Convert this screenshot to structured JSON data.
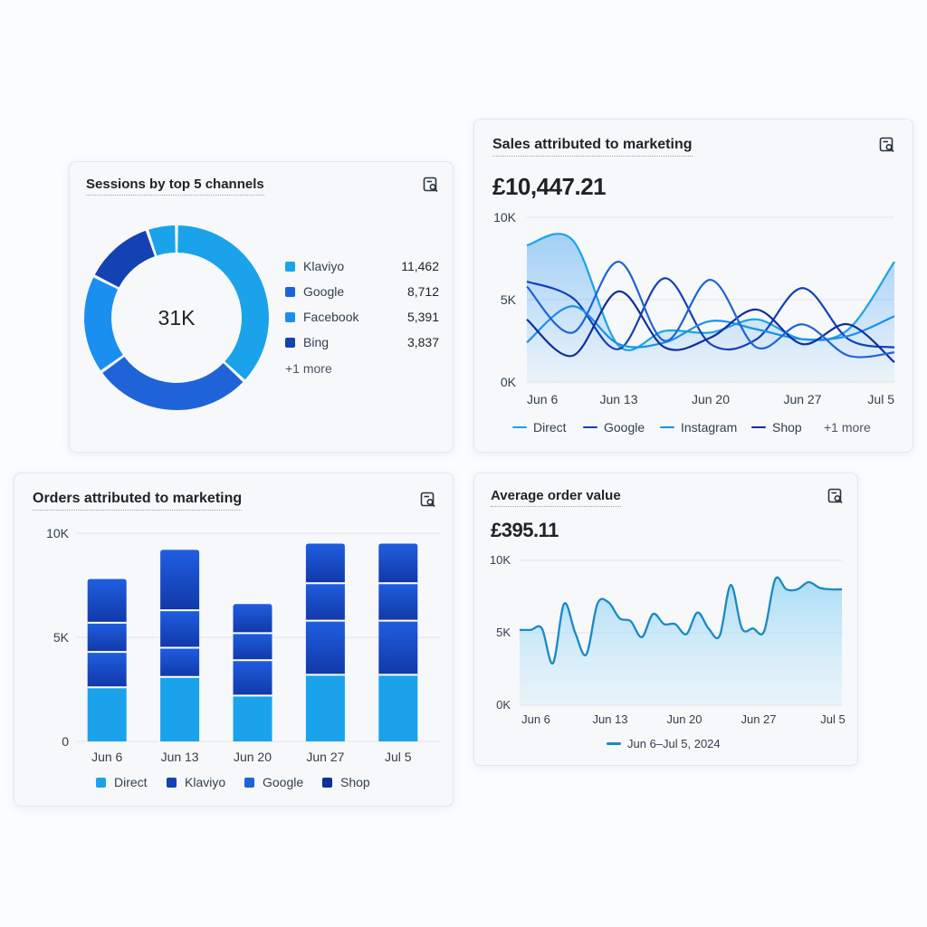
{
  "colors": {
    "light_blue": "#1aa3ea",
    "mid_blue": "#1f63d8",
    "dark_blue": "#1342b3",
    "navy": "#0f2f9a",
    "grid": "#e1e5ea"
  },
  "sessions_card": {
    "title": "Sessions by top 5 channels",
    "icon": "report-search-icon",
    "center_value": "31K",
    "more_label": "+1 more",
    "chart_data": {
      "type": "pie",
      "title": "Sessions by top 5 channels",
      "center_label": "31K",
      "categories": [
        "Klaviyo",
        "Google",
        "Facebook",
        "Bing",
        "+1 more"
      ],
      "values": [
        11462,
        8712,
        5391,
        3837,
        1600
      ],
      "colors": [
        "#1aa3ea",
        "#1f63d8",
        "#1a8ff0",
        "#1342b3",
        "#1aa3ea"
      ]
    },
    "legend": [
      {
        "label": "Klaviyo",
        "value": "11,462",
        "color": "#1aa3ea"
      },
      {
        "label": "Google",
        "value": "8,712",
        "color": "#1f63d8"
      },
      {
        "label": "Facebook",
        "value": "5,391",
        "color": "#1a8ff0"
      },
      {
        "label": "Bing",
        "value": "3,837",
        "color": "#1342b3"
      }
    ]
  },
  "sales_card": {
    "title": "Sales attributed to marketing",
    "icon": "report-search-icon",
    "total": "£10,447.21",
    "more_label": "+1 more",
    "chart_data": {
      "type": "line",
      "title": "Sales attributed to marketing",
      "ylabel": "",
      "xlabel": "",
      "ylim": [
        0,
        10000
      ],
      "y_ticks": [
        "0K",
        "5K",
        "10K"
      ],
      "y_tick_values": [
        0,
        5000,
        10000
      ],
      "x_tick_labels": [
        "Jun 6",
        "Jun 13",
        "Jun 20",
        "Jun 27",
        "Jul 5"
      ],
      "x": [
        "Jun 6",
        "Jun 10",
        "Jun 13",
        "Jun 17",
        "Jun 20",
        "Jun 24",
        "Jun 27",
        "Jul 1",
        "Jul 5"
      ],
      "series": [
        {
          "name": "Direct",
          "color": "#1aa3ea",
          "fill": true,
          "values": [
            8300,
            8600,
            2200,
            3100,
            3000,
            3800,
            2600,
            3200,
            7300
          ]
        },
        {
          "name": "Google",
          "color": "#1342b3",
          "values": [
            6100,
            5100,
            2000,
            6300,
            2300,
            2600,
            5700,
            2600,
            2100
          ]
        },
        {
          "name": "Instagram",
          "color": "#1a8ff0",
          "values": [
            2400,
            4600,
            2300,
            2400,
            3700,
            3200,
            2600,
            2800,
            4000
          ]
        },
        {
          "name": "Shop",
          "color": "#0f2f9a",
          "values": [
            3800,
            1600,
            5500,
            2100,
            2700,
            4400,
            2300,
            3500,
            1200
          ]
        },
        {
          "name": "+1 more",
          "color": "#1f63d8",
          "values": [
            5800,
            3000,
            7300,
            2500,
            6200,
            2100,
            3500,
            1600,
            1800
          ]
        }
      ]
    },
    "legend": [
      {
        "label": "Direct",
        "color": "#1aa3ea"
      },
      {
        "label": "Google",
        "color": "#1342b3"
      },
      {
        "label": "Instagram",
        "color": "#1a8ff0"
      },
      {
        "label": "Shop",
        "color": "#0f2f9a"
      }
    ]
  },
  "orders_card": {
    "title": "Orders attributed to marketing",
    "icon": "report-search-icon",
    "chart_data": {
      "type": "bar",
      "stacked": true,
      "title": "Orders attributed to marketing",
      "xlabel": "",
      "ylabel": "",
      "ylim": [
        0,
        10000
      ],
      "y_ticks": [
        "0",
        "5K",
        "10K"
      ],
      "y_tick_values": [
        0,
        5000,
        10000
      ],
      "categories": [
        "Jun 6",
        "Jun 13",
        "Jun 20",
        "Jun 27",
        "Jul 5"
      ],
      "series": [
        {
          "name": "Direct",
          "color": "#1aa3ea",
          "values": [
            2600,
            3100,
            2200,
            3200,
            3200
          ]
        },
        {
          "name": "Klaviyo",
          "color": "#1342b3",
          "values": [
            1700,
            1400,
            1700,
            2600,
            2600
          ]
        },
        {
          "name": "Google",
          "color": "#1f63d8",
          "values": [
            1400,
            1800,
            1300,
            1800,
            1800
          ]
        },
        {
          "name": "Shop",
          "color": "#1342b3",
          "values": [
            2100,
            2900,
            1400,
            1900,
            1900
          ]
        }
      ]
    },
    "legend": [
      {
        "label": "Direct",
        "color": "#1aa3ea"
      },
      {
        "label": "Klaviyo",
        "color": "#1342b3"
      },
      {
        "label": "Google",
        "color": "#1f63d8"
      },
      {
        "label": "Shop",
        "color": "#0f2f9a"
      }
    ]
  },
  "aov_card": {
    "title": "Average order value",
    "icon": "report-search-icon",
    "total": "£395.11",
    "legend_label": "Jun 6–Jul 5, 2024",
    "legend_color": "#1a8ac4",
    "chart_data": {
      "type": "area",
      "title": "Average order value",
      "xlabel": "",
      "ylabel": "",
      "ylim": [
        0,
        10000
      ],
      "y_ticks": [
        "0K",
        "5K",
        "10K"
      ],
      "y_tick_values": [
        0,
        5000,
        10000
      ],
      "x_tick_labels": [
        "Jun 6",
        "Jun 13",
        "Jun 20",
        "Jun 27",
        "Jul 5"
      ],
      "series": [
        {
          "name": "Jun 6–Jul 5, 2024",
          "color": "#1a8ac4",
          "x": [
            0,
            1,
            2,
            3,
            4,
            5,
            6,
            7,
            8,
            9,
            10,
            11,
            12,
            13,
            14,
            15,
            16,
            17,
            18,
            19,
            20,
            21,
            22,
            23,
            24,
            25,
            26,
            27,
            28,
            29
          ],
          "values": [
            5200,
            5200,
            5300,
            2900,
            7000,
            5000,
            3500,
            7000,
            7100,
            6000,
            5800,
            4700,
            6300,
            5600,
            5600,
            4900,
            6400,
            5300,
            4800,
            8300,
            5300,
            5300,
            5100,
            8700,
            8000,
            8000,
            8500,
            8100,
            8000,
            8000
          ]
        }
      ]
    }
  }
}
